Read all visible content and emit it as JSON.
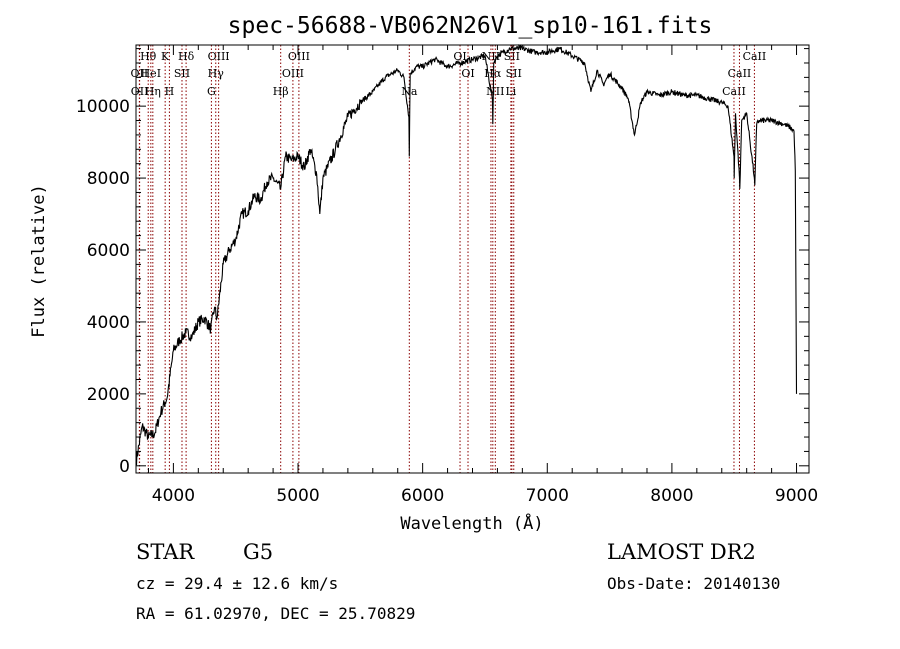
{
  "chart_data": {
    "type": "line",
    "title": "spec-56688-VB062N26V1_sp10-161.fits",
    "xlabel": "Wavelength (Å)",
    "ylabel": "Flux (relative)",
    "xlim": [
      3700,
      9100
    ],
    "ylim": [
      -200,
      11700
    ],
    "xticks": [
      "4000",
      "5000",
      "6000",
      "7000",
      "8000",
      "9000"
    ],
    "yticks": [
      "0",
      "2000",
      "4000",
      "6000",
      "8000",
      "10000"
    ],
    "xtick_values": [
      4000,
      5000,
      6000,
      7000,
      8000,
      9000
    ],
    "ytick_values": [
      0,
      2000,
      4000,
      6000,
      8000,
      10000
    ],
    "series": [
      {
        "x": [
          3700,
          3750,
          3800,
          3850,
          3900,
          3950,
          4000,
          4050,
          4100,
          4150,
          4200,
          4250,
          4300,
          4330,
          4350,
          4400,
          4450,
          4500,
          4550,
          4600,
          4650,
          4700,
          4750,
          4800,
          4860,
          4900,
          4950,
          5000,
          5050,
          5100,
          5150,
          5175,
          5200,
          5300,
          5400,
          5500,
          5600,
          5700,
          5800,
          5850,
          5890,
          5893,
          5900,
          5950,
          6000,
          6100,
          6200,
          6300,
          6400,
          6500,
          6560,
          6563,
          6570,
          6600,
          6700,
          6800,
          6900,
          7000,
          7100,
          7200,
          7300,
          7350,
          7400,
          7450,
          7500,
          7600,
          7650,
          7700,
          7750,
          7800,
          7900,
          8000,
          8100,
          8200,
          8300,
          8400,
          8450,
          8498,
          8500,
          8510,
          8542,
          8545,
          8560,
          8600,
          8662,
          8665,
          8680,
          8700,
          8800,
          8900,
          8950,
          8980,
          8990,
          9000
        ],
        "y": [
          100,
          1100,
          800,
          900,
          1500,
          1900,
          3200,
          3500,
          3700,
          3600,
          4000,
          4100,
          3800,
          4400,
          4100,
          5600,
          6000,
          6300,
          7000,
          7100,
          7500,
          7400,
          7900,
          8000,
          7700,
          8600,
          8500,
          8600,
          8300,
          8800,
          8100,
          7000,
          8000,
          8800,
          9700,
          10100,
          10400,
          10800,
          11000,
          10800,
          9700,
          8600,
          10900,
          11100,
          11100,
          11300,
          11100,
          11200,
          11300,
          11400,
          10200,
          9500,
          11200,
          11400,
          11600,
          11600,
          11500,
          11500,
          11600,
          11400,
          11200,
          10400,
          11000,
          10600,
          10900,
          10500,
          10200,
          9200,
          10100,
          10400,
          10300,
          10400,
          10300,
          10300,
          10200,
          10100,
          10000,
          8600,
          8000,
          9800,
          8000,
          7700,
          9600,
          9800,
          8000,
          7800,
          9500,
          9600,
          9600,
          9500,
          9400,
          9300,
          8200,
          2000
        ]
      }
    ],
    "lines": [
      {
        "name": "OII",
        "wl": 3727,
        "row": 2
      },
      {
        "name": "OII",
        "wl": 3729,
        "row": 3
      },
      {
        "name": "Hθ",
        "wl": 3798,
        "row": 1
      },
      {
        "name": "HeI",
        "wl": 3819,
        "row": 2
      },
      {
        "name": "Hη",
        "wl": 3835,
        "row": 3
      },
      {
        "name": "K",
        "wl": 3934,
        "row": 1
      },
      {
        "name": "SII",
        "wl": 4069,
        "row": 2
      },
      {
        "name": "H",
        "wl": 3968,
        "row": 3
      },
      {
        "name": "Hδ",
        "wl": 4102,
        "row": 1
      },
      {
        "name": "OIII",
        "wl": 4363,
        "row": 1
      },
      {
        "name": "Hγ",
        "wl": 4340,
        "row": 2
      },
      {
        "name": "G",
        "wl": 4305,
        "row": 3
      },
      {
        "name": "Hβ",
        "wl": 4861,
        "row": 3
      },
      {
        "name": "OIII",
        "wl": 4959,
        "row": 2
      },
      {
        "name": "OIII",
        "wl": 5007,
        "row": 1
      },
      {
        "name": "Na",
        "wl": 5893,
        "row": 3
      },
      {
        "name": "OI",
        "wl": 6300,
        "row": 1
      },
      {
        "name": "OI",
        "wl": 6364,
        "row": 2
      },
      {
        "name": "NII",
        "wl": 6548,
        "row": 1
      },
      {
        "name": "Hα",
        "wl": 6563,
        "row": 2
      },
      {
        "name": "NII",
        "wl": 6583,
        "row": 3
      },
      {
        "name": "SII",
        "wl": 6716,
        "row": 1
      },
      {
        "name": "SII",
        "wl": 6731,
        "row": 2
      },
      {
        "name": "Li",
        "wl": 6708,
        "row": 3
      },
      {
        "name": "CaII",
        "wl": 8498,
        "row": 3
      },
      {
        "name": "CaII",
        "wl": 8542,
        "row": 2
      },
      {
        "name": "CaII",
        "wl": 8662,
        "row": 1
      }
    ],
    "line_color": "#8b0000",
    "grid": false
  },
  "info": {
    "class_label": "STAR",
    "subclass": "G5",
    "survey": "LAMOST DR2",
    "cz": "cz = 29.4 ± 12.6 km/s",
    "obs_date": "Obs-Date: 20140130",
    "radec": "RA =  61.02970, DEC =  25.70829"
  }
}
